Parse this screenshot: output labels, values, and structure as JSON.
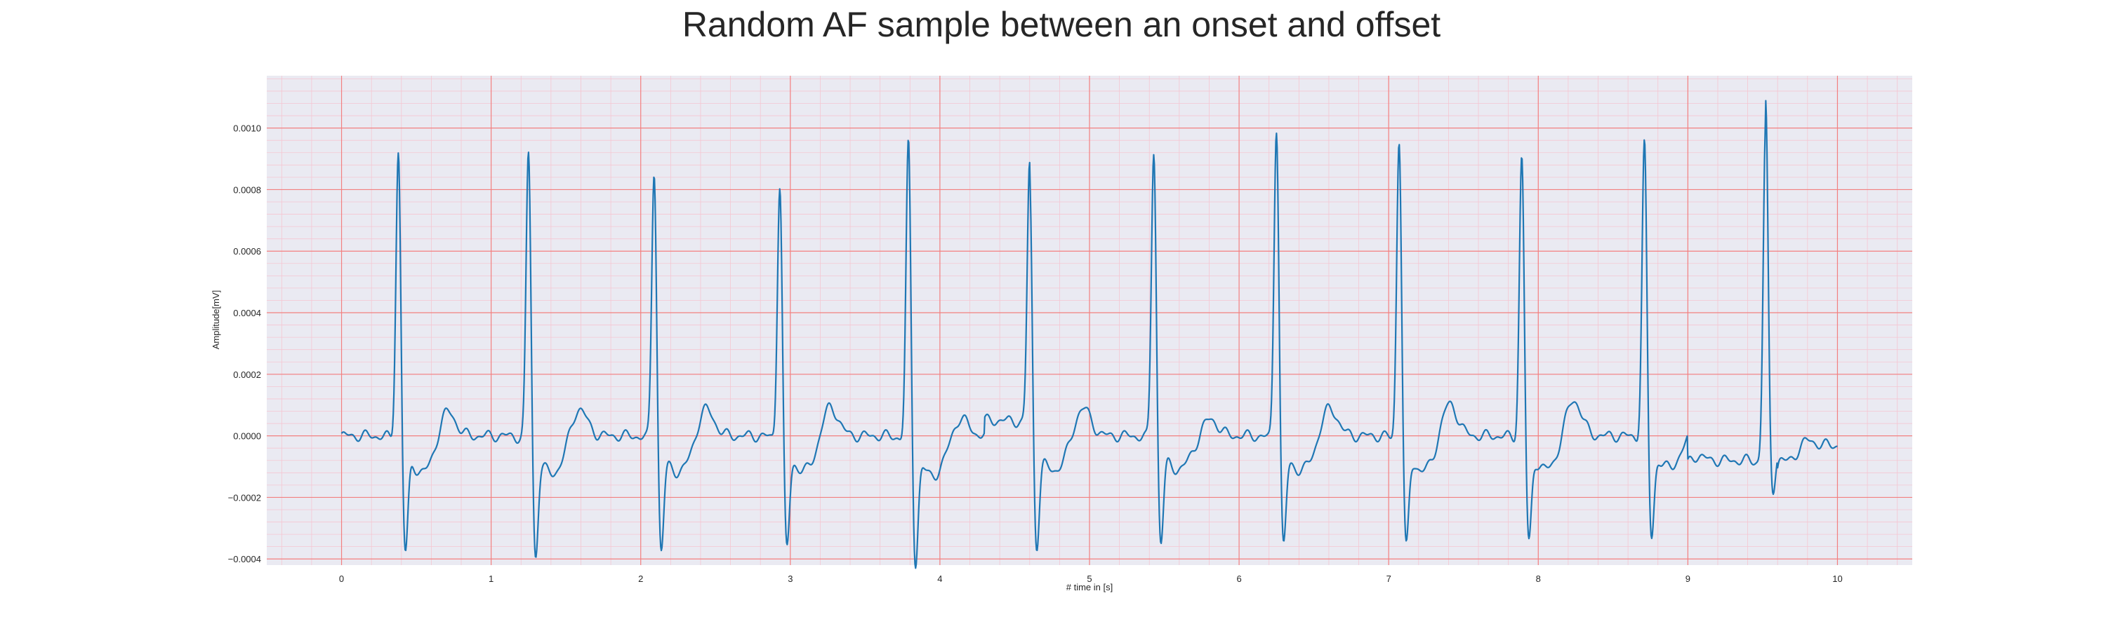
{
  "chart_data": {
    "type": "line",
    "title": "Random AF sample between an onset and offset",
    "xlabel": "# time in [s]",
    "ylabel": "Amplitude[mV]",
    "xlim": [
      -0.5,
      10.5
    ],
    "ylim": [
      -0.00042,
      0.00117
    ],
    "x_ticks": [
      0,
      1,
      2,
      3,
      4,
      5,
      6,
      7,
      8,
      9,
      10
    ],
    "x_tick_labels": [
      "0",
      "1",
      "2",
      "3",
      "4",
      "5",
      "6",
      "7",
      "8",
      "9",
      "10"
    ],
    "y_ticks": [
      -0.0004,
      -0.0002,
      0.0,
      0.0002,
      0.0004,
      0.0006,
      0.0008,
      0.001
    ],
    "y_tick_labels": [
      "−0.0004",
      "−0.0002",
      "0.0000",
      "0.0002",
      "0.0004",
      "0.0006",
      "0.0008",
      "0.0010"
    ],
    "grid": true,
    "legend": "none",
    "colors": {
      "plot_background": "#eaeaf2",
      "major_grid": "#f28080",
      "minor_grid": "#f5c6d2",
      "line": "#1f77b4"
    },
    "series": [
      {
        "beats": [
          {
            "t": 0.38,
            "peak": 0.00096,
            "trough": -0.00034
          },
          {
            "t": 1.25,
            "peak": 0.00096,
            "trough": -0.00035
          },
          {
            "t": 2.09,
            "peak": 0.0009,
            "trough": -0.000335
          },
          {
            "t": 2.93,
            "peak": 0.00085,
            "trough": -0.000325
          },
          {
            "t": 3.79,
            "peak": 0.00099,
            "trough": -0.00037
          },
          {
            "t": 4.6,
            "peak": 0.00087,
            "trough": -0.00032
          },
          {
            "t": 5.43,
            "peak": 0.00096,
            "trough": -0.00031
          },
          {
            "t": 6.25,
            "peak": 0.00104,
            "trough": -0.00032
          },
          {
            "t": 7.07,
            "peak": 0.001,
            "trough": -0.000325
          },
          {
            "t": 7.89,
            "peak": 0.00094,
            "trough": -0.00031
          },
          {
            "t": 8.71,
            "peak": 0.00098,
            "trough": -0.000295
          },
          {
            "t": 9.52,
            "peak": 0.0011,
            "trough": -0.000165
          }
        ],
        "t_waves": [
          {
            "t": 0.7,
            "amp": 0.0001
          },
          {
            "t": 1.58,
            "amp": 0.000105
          },
          {
            "t": 2.43,
            "amp": 0.0001
          },
          {
            "t": 3.26,
            "amp": 0.00011
          },
          {
            "t": 4.13,
            "amp": 7e-05
          },
          {
            "t": 4.95,
            "amp": 0.0001
          },
          {
            "t": 5.8,
            "amp": 6e-05
          },
          {
            "t": 6.6,
            "amp": 0.0001
          },
          {
            "t": 7.4,
            "amp": 0.00012
          },
          {
            "t": 8.23,
            "amp": 0.00013
          },
          {
            "t": 9.03,
            "amp": 3e-05
          },
          {
            "t": 9.78,
            "amp": 4e-05
          }
        ],
        "baseline_segments": [
          {
            "from": 0.0,
            "to": 0.38,
            "level": 0.0
          },
          {
            "from": 1.0,
            "to": 1.25,
            "level": 0.0
          },
          {
            "from": 4.3,
            "to": 4.6,
            "level": 5e-05
          },
          {
            "from": 9.0,
            "to": 9.52,
            "level": -8e-05
          },
          {
            "from": 9.6,
            "to": 10.0,
            "level": -3e-05
          }
        ]
      }
    ]
  }
}
